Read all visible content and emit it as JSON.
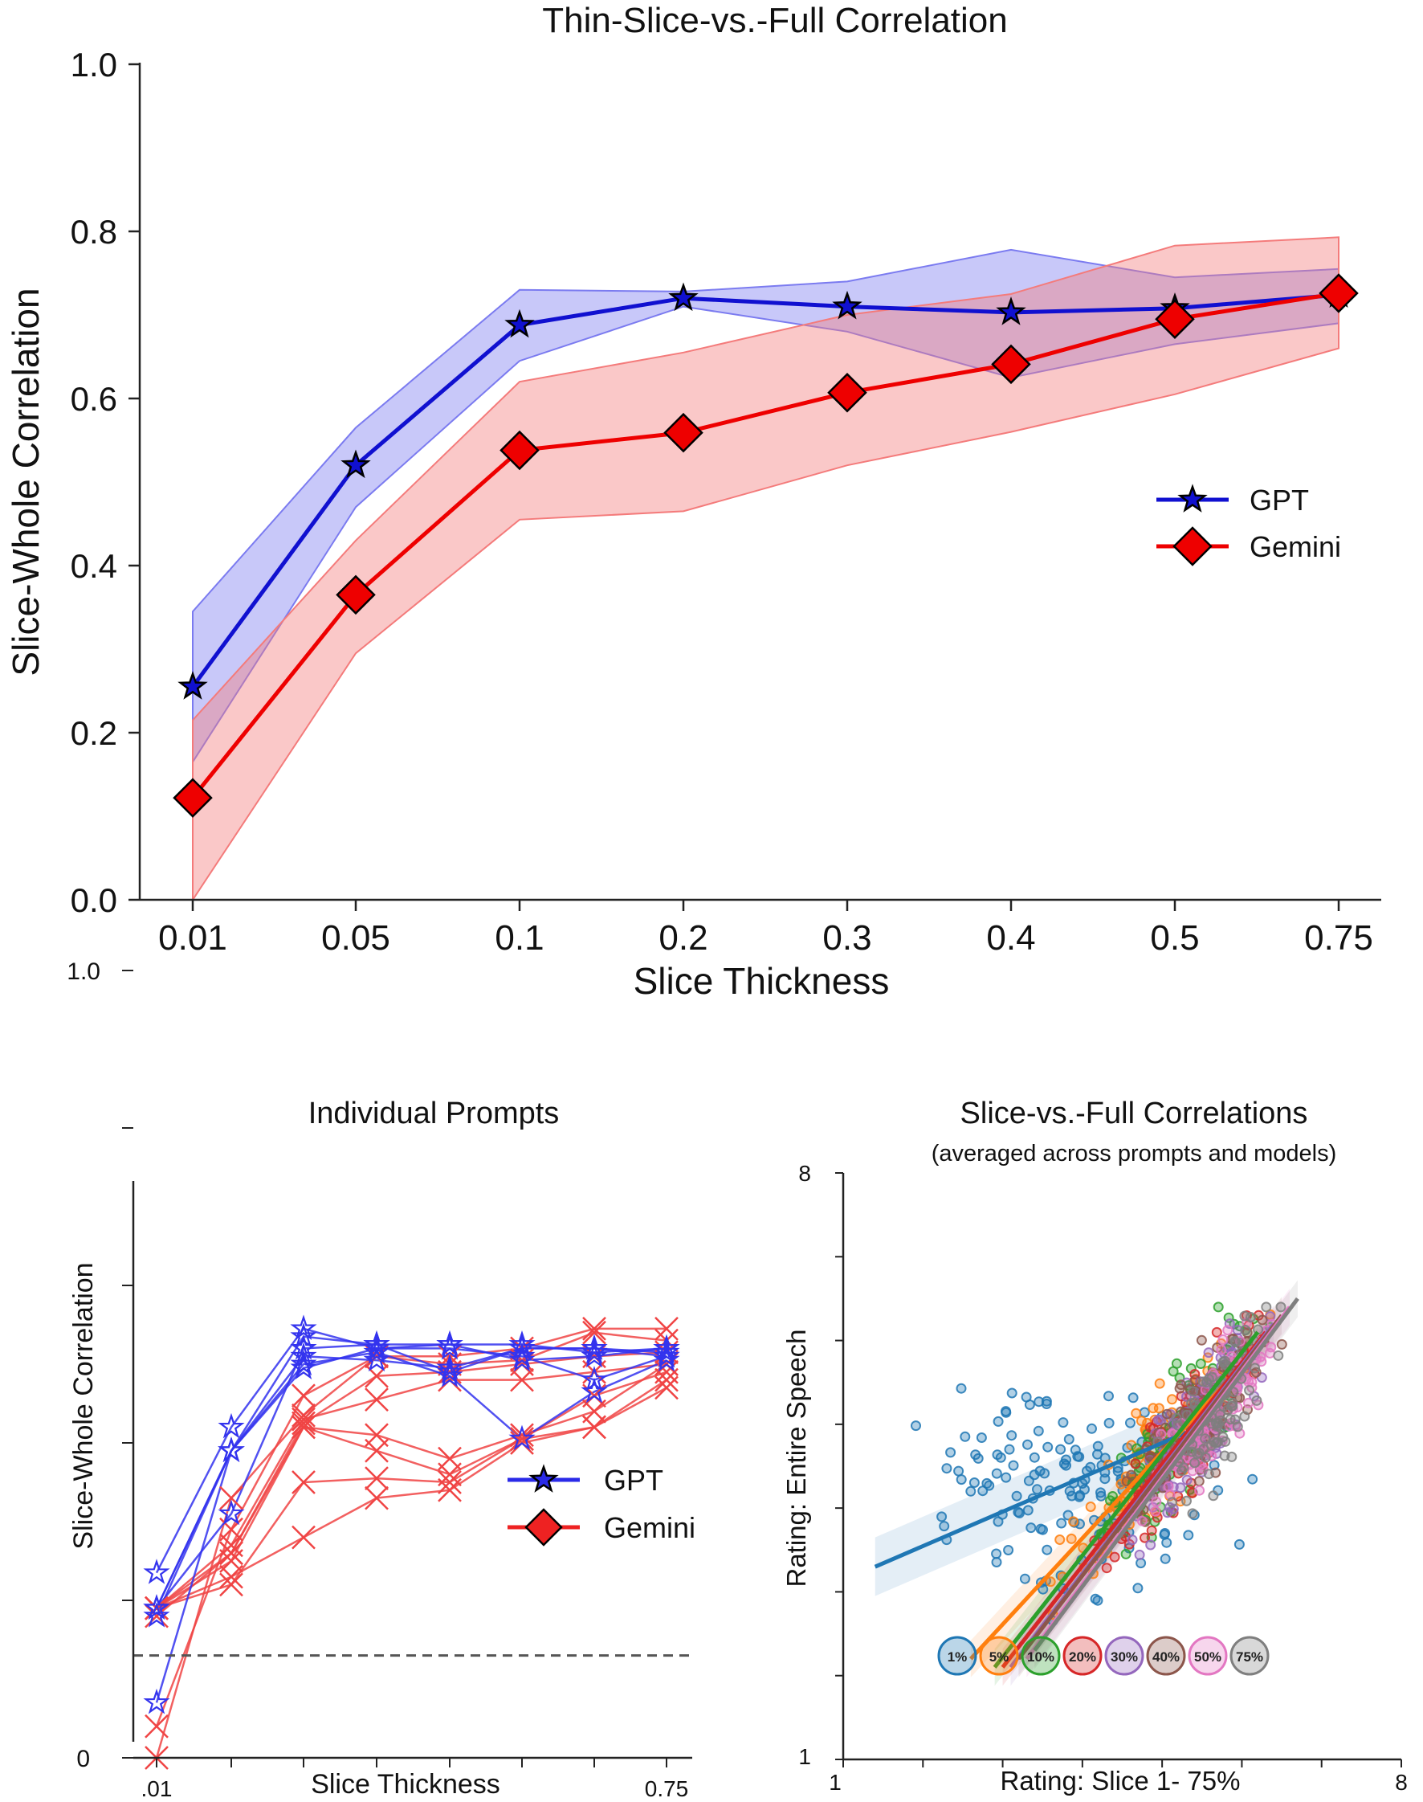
{
  "chart_data": [
    {
      "type": "line",
      "title": "Thin-Slice-vs.-Full Correlation",
      "xlabel": "Slice Thickness",
      "ylabel": "Slice-Whole Correlation",
      "categories": [
        "0.01",
        "0.05",
        "0.1",
        "0.2",
        "0.3",
        "0.4",
        "0.5",
        "0.75"
      ],
      "ylim": [
        0,
        1
      ],
      "yticks": [
        "0.0",
        "0.2",
        "0.4",
        "0.6",
        "0.8",
        "1.0"
      ],
      "legend_position": "right",
      "series": [
        {
          "name": "GPT",
          "color": "#1010d0",
          "band_color": "#7b7bf0",
          "marker": "star",
          "values": [
            0.255,
            0.52,
            0.688,
            0.72,
            0.71,
            0.703,
            0.708,
            0.724
          ],
          "lower": [
            0.165,
            0.47,
            0.645,
            0.71,
            0.68,
            0.625,
            0.665,
            0.69
          ],
          "upper": [
            0.345,
            0.565,
            0.73,
            0.728,
            0.74,
            0.778,
            0.745,
            0.755
          ]
        },
        {
          "name": "Gemini",
          "color": "#ee0000",
          "band_color": "#f47b7b",
          "marker": "diamond",
          "values": [
            0.122,
            0.365,
            0.538,
            0.559,
            0.607,
            0.641,
            0.695,
            0.726
          ],
          "lower": [
            0.0,
            0.295,
            0.455,
            0.465,
            0.52,
            0.56,
            0.605,
            0.66
          ],
          "upper": [
            0.215,
            0.43,
            0.62,
            0.655,
            0.7,
            0.725,
            0.783,
            0.793
          ]
        }
      ]
    },
    {
      "type": "line",
      "title": "Individual Prompts",
      "xlabel": "Slice Thickness",
      "ylabel": "Slice-Whole Correlation",
      "xtick_labels": [
        ".01",
        "",
        "",
        "",
        "",
        "",
        "",
        "0.75"
      ],
      "ylim": [
        0,
        1
      ],
      "yticks": [
        "0",
        "1.0"
      ],
      "reference_line": 0.13,
      "legend": [
        {
          "name": "GPT",
          "color": "#2a2ae8",
          "marker": "star"
        },
        {
          "name": "Gemini",
          "color": "#ee2222",
          "marker": "diamond"
        }
      ],
      "series": [
        {
          "model": "GPT",
          "values": [
            0.235,
            0.42,
            0.545,
            0.52,
            0.525,
            0.525,
            0.515,
            0.52
          ]
        },
        {
          "model": "GPT",
          "values": [
            0.18,
            0.39,
            0.535,
            0.525,
            0.525,
            0.505,
            0.51,
            0.52
          ]
        },
        {
          "model": "GPT",
          "values": [
            0.19,
            0.39,
            0.51,
            0.505,
            0.495,
            0.52,
            0.52,
            0.51
          ]
        },
        {
          "model": "GPT",
          "values": [
            0.19,
            0.31,
            0.52,
            0.525,
            0.49,
            0.52,
            0.52,
            0.515
          ]
        },
        {
          "model": "GPT",
          "values": [
            0.07,
            0.39,
            0.495,
            0.52,
            0.52,
            0.51,
            0.48,
            0.51
          ]
        },
        {
          "model": "GPT",
          "values": [
            0.19,
            0.39,
            0.5,
            0.515,
            0.485,
            0.405,
            0.465,
            0.505
          ]
        },
        {
          "model": "Gemini",
          "values": [
            0.0,
            0.33,
            0.435,
            0.51,
            0.51,
            0.52,
            0.545,
            0.545
          ]
        },
        {
          "model": "Gemini",
          "values": [
            0.04,
            0.29,
            0.46,
            0.51,
            0.5,
            0.505,
            0.54,
            0.53
          ]
        },
        {
          "model": "Gemini",
          "values": [
            0.18,
            0.26,
            0.425,
            0.485,
            0.49,
            0.5,
            0.51,
            0.515
          ]
        },
        {
          "model": "Gemini",
          "values": [
            0.19,
            0.27,
            0.43,
            0.455,
            0.48,
            0.48,
            0.49,
            0.5
          ]
        },
        {
          "model": "Gemini",
          "values": [
            0.19,
            0.26,
            0.42,
            0.41,
            0.38,
            0.41,
            0.44,
            0.5
          ]
        },
        {
          "model": "Gemini",
          "values": [
            0.19,
            0.25,
            0.42,
            0.39,
            0.36,
            0.405,
            0.42,
            0.47
          ]
        },
        {
          "model": "Gemini",
          "values": [
            0.19,
            0.22,
            0.35,
            0.355,
            0.35,
            0.405,
            0.46,
            0.49
          ]
        },
        {
          "model": "Gemini",
          "values": [
            0.19,
            0.23,
            0.28,
            0.33,
            0.34,
            0.4,
            0.42,
            0.48
          ]
        }
      ]
    },
    {
      "type": "scatter",
      "title": "Slice-vs.-Full Correlations",
      "subtitle": "(averaged across prompts and models)",
      "xlabel": "Rating: Slice 1- 75%",
      "ylabel": "Rating: Entire Speech",
      "xlim": [
        1,
        8
      ],
      "ylim": [
        1,
        8
      ],
      "xtick_labels": [
        "1",
        "8"
      ],
      "ytick_labels": [
        "1",
        "8"
      ],
      "series": [
        {
          "name": "1%",
          "color": "#1f77b4",
          "center": [
            3.9,
            4.2
          ],
          "spread": [
            1.1,
            0.75
          ],
          "n": 150,
          "line": [
            [
              1.4,
              3.3
            ],
            [
              5.3,
              4.9
            ]
          ]
        },
        {
          "name": "5%",
          "color": "#ff7f0e",
          "center": [
            4.9,
            4.0
          ],
          "spread": [
            0.75,
            0.75
          ],
          "n": 110,
          "line": [
            [
              2.6,
              2.2
            ],
            [
              6.1,
              5.8
            ]
          ]
        },
        {
          "name": "10%",
          "color": "#2ca02c",
          "center": [
            5.2,
            4.0
          ],
          "spread": [
            0.65,
            0.75
          ],
          "n": 110,
          "line": [
            [
              2.9,
              2.1
            ],
            [
              6.2,
              6.1
            ]
          ]
        },
        {
          "name": "20%",
          "color": "#d62728",
          "center": [
            5.3,
            3.9
          ],
          "spread": [
            0.6,
            0.75
          ],
          "n": 110,
          "line": [
            [
              3.0,
              2.1
            ],
            [
              6.3,
              6.1
            ]
          ]
        },
        {
          "name": "30%",
          "color": "#9467bd",
          "center": [
            5.4,
            4.0
          ],
          "spread": [
            0.6,
            0.75
          ],
          "n": 110,
          "line": [
            [
              3.1,
              2.1
            ],
            [
              6.4,
              6.2
            ]
          ]
        },
        {
          "name": "40%",
          "color": "#8c564b",
          "center": [
            5.5,
            4.0
          ],
          "spread": [
            0.55,
            0.75
          ],
          "n": 100,
          "line": [
            [
              3.2,
              2.2
            ],
            [
              6.5,
              6.3
            ]
          ]
        },
        {
          "name": "50%",
          "color": "#e377c2",
          "center": [
            5.6,
            4.0
          ],
          "spread": [
            0.55,
            0.75
          ],
          "n": 100,
          "line": [
            [
              3.3,
              2.2
            ],
            [
              6.6,
              6.4
            ]
          ]
        },
        {
          "name": "75%",
          "color": "#7f7f7f",
          "center": [
            5.7,
            4.1
          ],
          "spread": [
            0.5,
            0.75
          ],
          "n": 100,
          "line": [
            [
              3.4,
              2.3
            ],
            [
              6.7,
              6.5
            ]
          ]
        }
      ]
    }
  ]
}
